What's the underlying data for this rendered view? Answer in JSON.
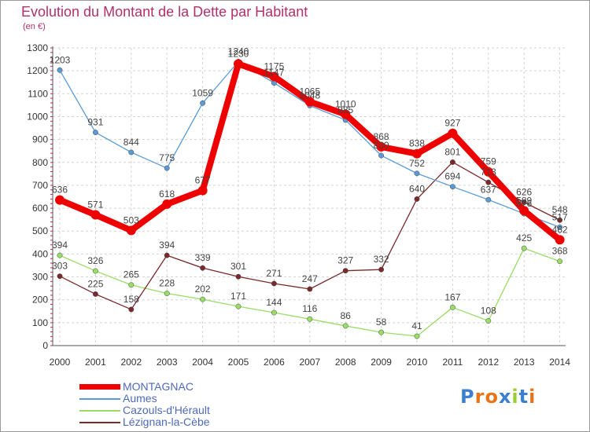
{
  "title": "Evolution du Montant de la Dette par Habitant",
  "unit": "(en €)",
  "logo": "Proxiti",
  "chart_data": {
    "type": "line",
    "title": "Evolution du Montant de la Dette par Habitant",
    "subtitle": "(en €)",
    "x": [
      "2000",
      "2001",
      "2002",
      "2003",
      "2004",
      "2005",
      "2006",
      "2007",
      "2008",
      "2009",
      "2010",
      "2011",
      "2012",
      "2013",
      "2014"
    ],
    "ylim": [
      0,
      1300
    ],
    "yticks": [
      "0",
      "100",
      "200",
      "300",
      "400",
      "500",
      "600",
      "700",
      "800",
      "900",
      "1000",
      "1100",
      "1200",
      "1300"
    ],
    "grid": true,
    "legend_position": "bottom-left",
    "series": [
      {
        "name": "MONTAGNAC",
        "color": "#ee0000",
        "values": [
          636,
          571,
          503,
          618,
          677,
          1230,
          1175,
          1065,
          1010,
          868,
          838,
          927,
          759,
          589,
          462
        ],
        "labels": [
          "636",
          "571",
          "503",
          "618",
          "677",
          "1230",
          "1175",
          "1065",
          "1010",
          "868",
          "838",
          "927",
          "759",
          "589",
          "462"
        ]
      },
      {
        "name": "Aumes",
        "color": "#5b9bd5",
        "values": [
          1203,
          931,
          844,
          775,
          1059,
          1240,
          1147,
          1048,
          985,
          830,
          752,
          694,
          637,
          576,
          517
        ],
        "labels": [
          "1203",
          "931",
          "844",
          "775",
          "1059",
          "1240",
          "1147",
          "1048",
          "985",
          "830",
          "752",
          "694",
          "637",
          "576",
          "517"
        ]
      },
      {
        "name": "Cazouls-d'Hérault",
        "color": "#99dd66",
        "values": [
          394,
          326,
          265,
          228,
          202,
          171,
          144,
          116,
          86,
          58,
          41,
          167,
          108,
          425,
          368
        ],
        "labels": [
          "394",
          "326",
          "265",
          "228",
          "202",
          "171",
          "144",
          "116",
          "86",
          "58",
          "41",
          "167",
          "108",
          "425",
          "368"
        ]
      },
      {
        "name": "Lézignan-la-Cèbe",
        "color": "#7a2a2a",
        "values": [
          303,
          225,
          158,
          394,
          339,
          301,
          271,
          247,
          327,
          332,
          640,
          801,
          713,
          626,
          548
        ],
        "labels": [
          "303",
          "225",
          "158",
          "394",
          "339",
          "301",
          "271",
          "247",
          "327",
          "332",
          "640",
          "801",
          "713",
          "626",
          "548"
        ]
      }
    ]
  }
}
